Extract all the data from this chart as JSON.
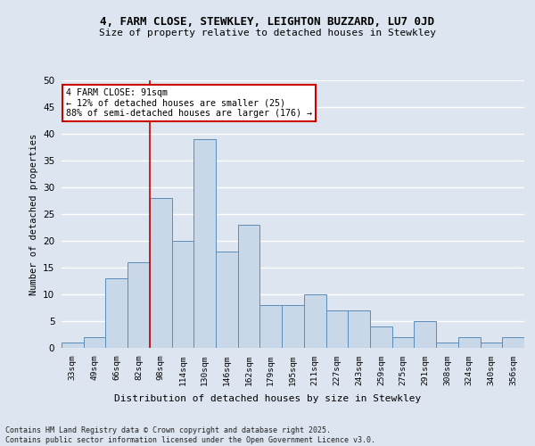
{
  "title1": "4, FARM CLOSE, STEWKLEY, LEIGHTON BUZZARD, LU7 0JD",
  "title2": "Size of property relative to detached houses in Stewkley",
  "xlabel": "Distribution of detached houses by size in Stewkley",
  "ylabel": "Number of detached properties",
  "categories": [
    "33sqm",
    "49sqm",
    "66sqm",
    "82sqm",
    "98sqm",
    "114sqm",
    "130sqm",
    "146sqm",
    "162sqm",
    "179sqm",
    "195sqm",
    "211sqm",
    "227sqm",
    "243sqm",
    "259sqm",
    "275sqm",
    "291sqm",
    "308sqm",
    "324sqm",
    "340sqm",
    "356sqm"
  ],
  "values": [
    1,
    2,
    13,
    16,
    28,
    20,
    39,
    18,
    23,
    8,
    8,
    10,
    7,
    7,
    4,
    2,
    5,
    1,
    2,
    1,
    2
  ],
  "bar_color": "#c8d8e8",
  "bar_edge_color": "#5b8db8",
  "annotation_text": "4 FARM CLOSE: 91sqm\n← 12% of detached houses are smaller (25)\n88% of semi-detached houses are larger (176) →",
  "vline_x_index": 3.5,
  "vline_color": "#cc0000",
  "annotation_box_color": "#cc0000",
  "ylim": [
    0,
    50
  ],
  "yticks": [
    0,
    5,
    10,
    15,
    20,
    25,
    30,
    35,
    40,
    45,
    50
  ],
  "footer": "Contains HM Land Registry data © Crown copyright and database right 2025.\nContains public sector information licensed under the Open Government Licence v3.0.",
  "background_color": "#dde6f0",
  "grid_color": "#ffffff"
}
